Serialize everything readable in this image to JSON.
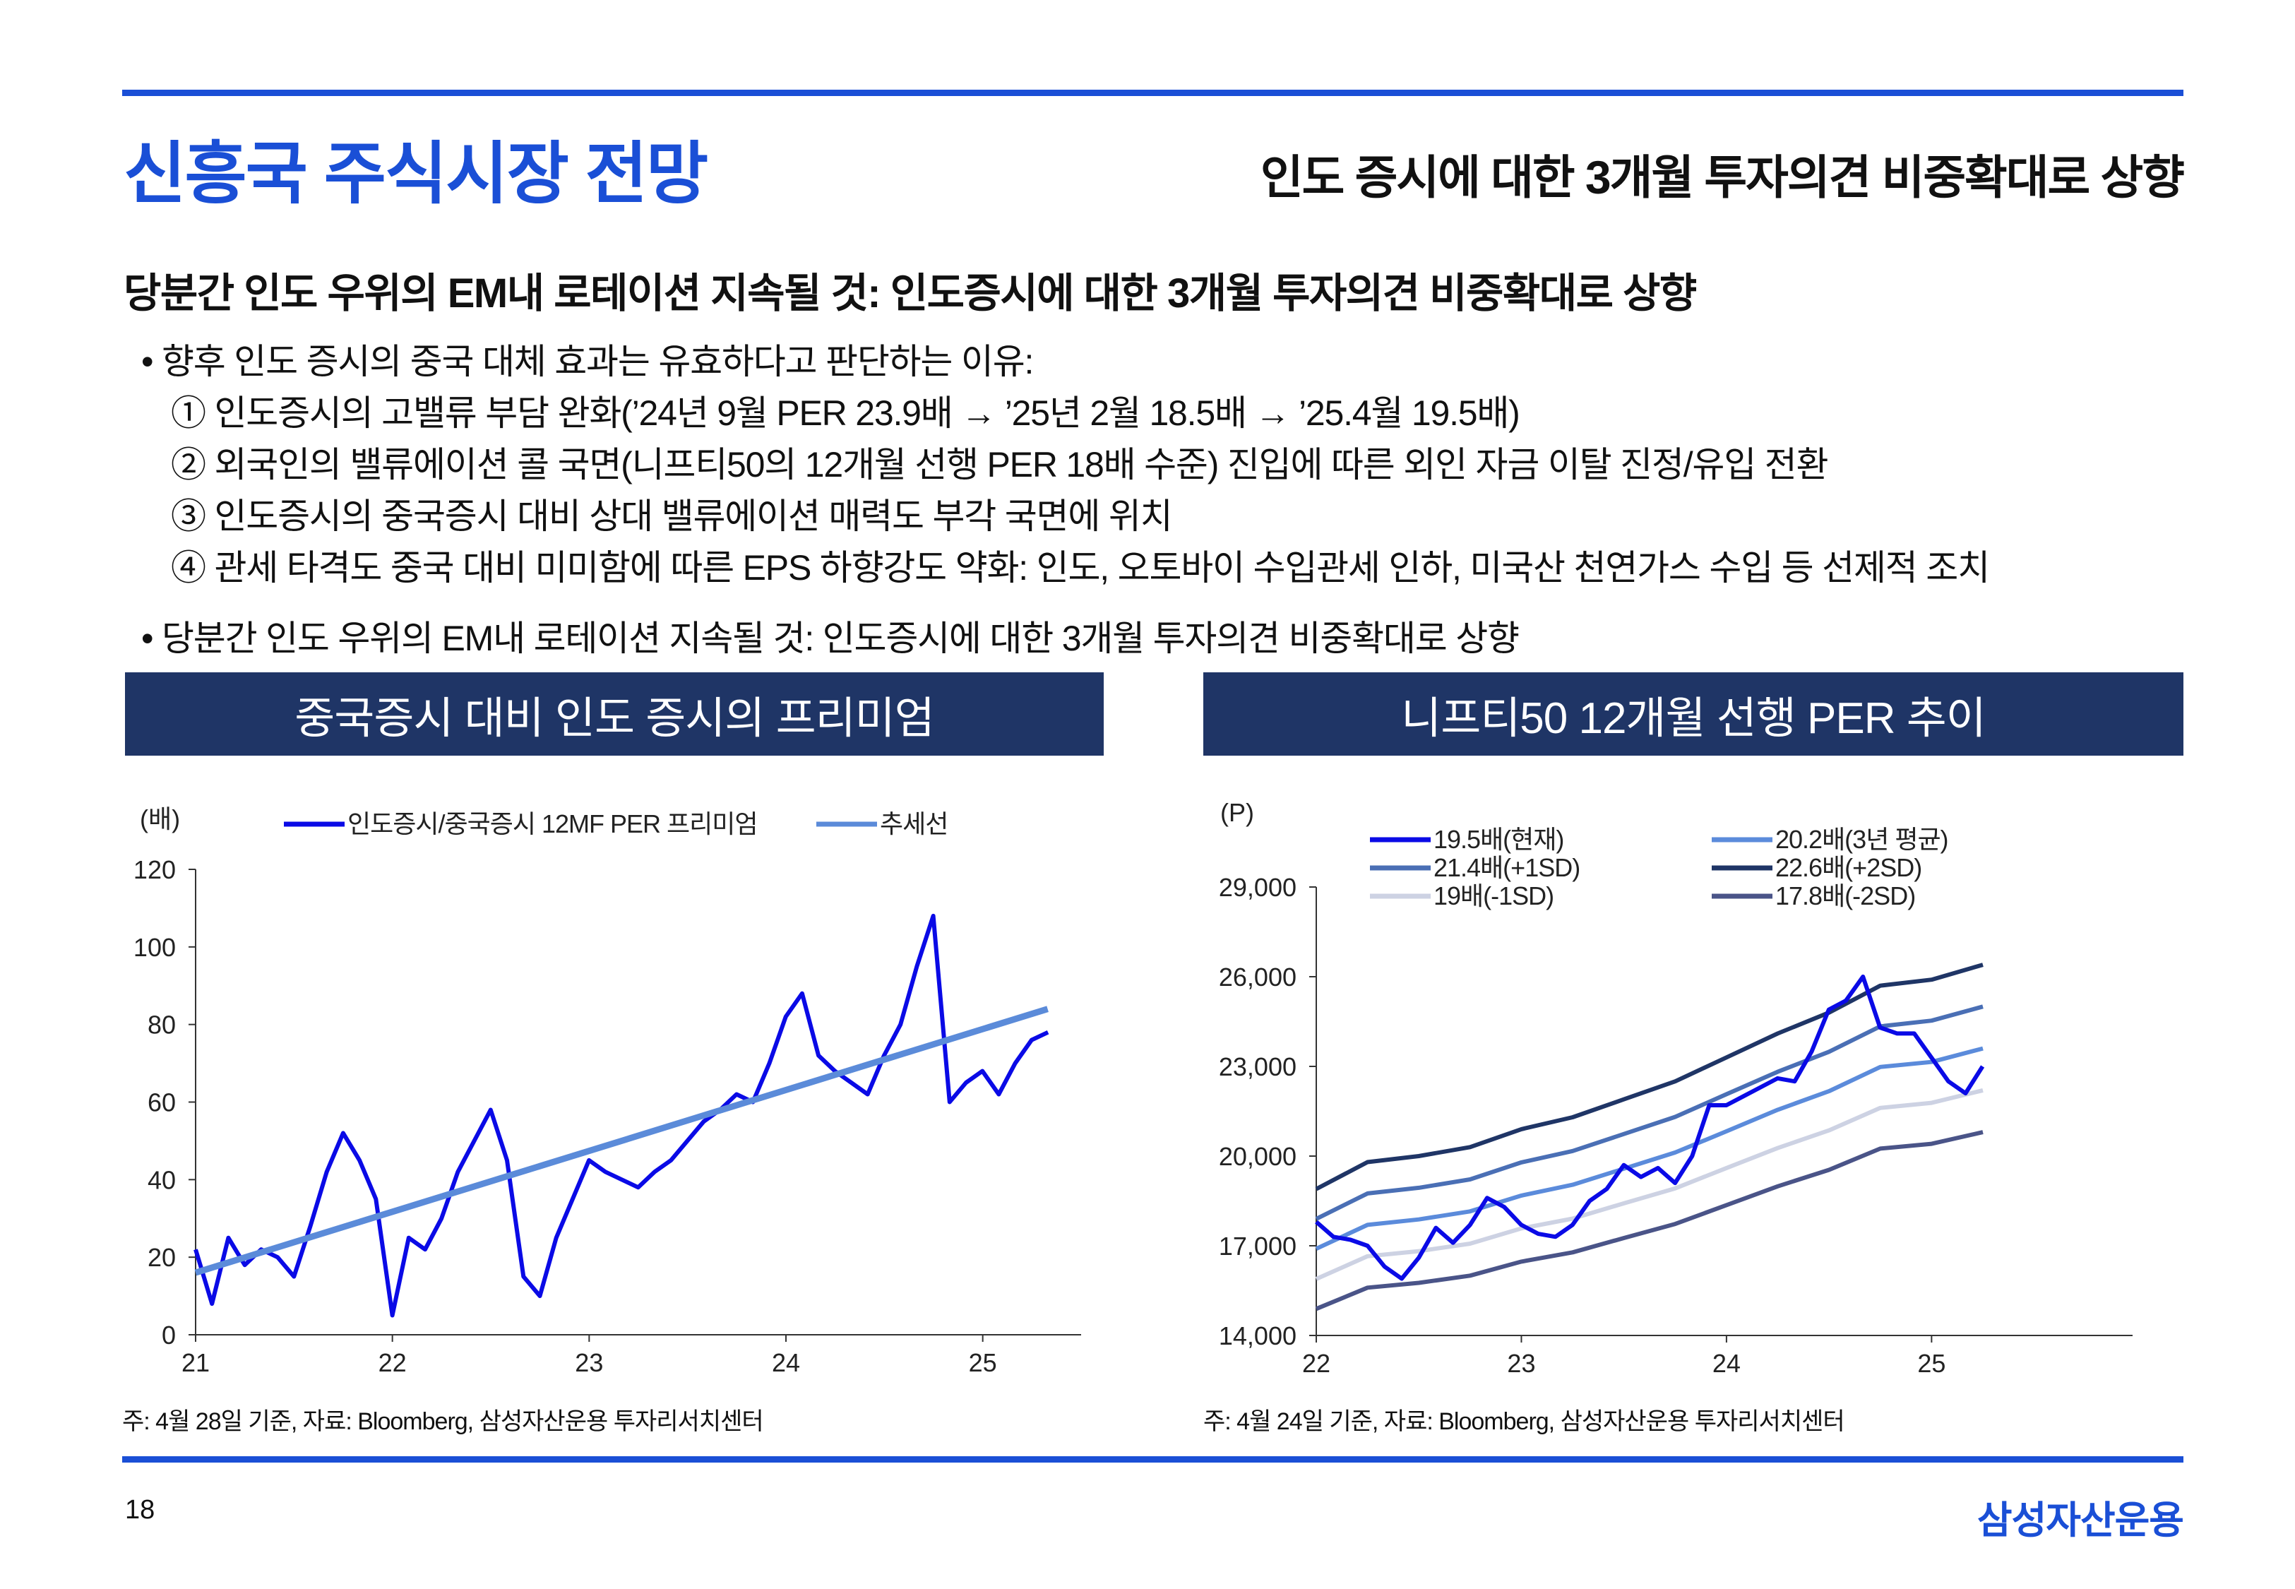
{
  "header": {
    "title": "신흥국 주식시장 전망",
    "subtitle": "인도 증시에 대한 3개월 투자의견 비중확대로 상향"
  },
  "heading": "당분간 인도 우위의 EM내 로테이션 지속될 것: 인도증시에 대한 3개월 투자의견 비중확대로 상향",
  "bullets": [
    "• 향후 인도 증시의 중국 대체 효과는 유효하다고 판단하는 이유:",
    "① 인도증시의 고밸류 부담 완화(’24년 9월 PER 23.9배 → ’25년 2월 18.5배 → ’25.4월 19.5배)",
    "② 외국인의 밸류에이션 콜 국면(니프티50의 12개월 선행 PER 18배 수준) 진입에 따른 외인 자금 이탈 진정/유입 전환",
    "③ 인도증시의 중국증시 대비 상대 밸류에이션 매력도 부각 국면에 위치",
    "④ 관세 타격도 중국 대비 미미함에 따른 EPS 하향강도 약화: 인도, 오토바이 수입관세 인하, 미국산 천연가스 수입 등 선제적 조치",
    "• 당분간 인도 우위의 EM내 로테이션 지속될 것: 인도증시에 대한 3개월 투자의견 비중확대로 상향"
  ],
  "notes": {
    "left": "주: 4월 28일 기준, 자료: Bloomberg, 삼성자산운용 투자리서치센터",
    "right": "주: 4월 24일 기준, 자료: Bloomberg, 삼성자산운용 투자리서치센터"
  },
  "footer": {
    "page": "18",
    "logo": "삼성자산운용"
  },
  "chart_data": [
    {
      "type": "line",
      "title": "중국증시 대비 인도 증시의 프리미엄",
      "ylabel": "(배)",
      "ylim": [
        0,
        120
      ],
      "yticks": [
        0,
        20,
        40,
        60,
        80,
        100,
        120
      ],
      "xlim": [
        2021,
        2025.5
      ],
      "xticks": [
        {
          "v": 2021,
          "label": "21"
        },
        {
          "v": 2022,
          "label": "22"
        },
        {
          "v": 2023,
          "label": "23"
        },
        {
          "v": 2024,
          "label": "24"
        },
        {
          "v": 2025,
          "label": "25"
        }
      ],
      "x_start": 2021,
      "x_step": 0.0833,
      "series": [
        {
          "name": "인도증시/중국증시 12MF PER 프리미엄",
          "color": "#0a0ae6",
          "values": [
            22,
            8,
            25,
            18,
            22,
            20,
            15,
            28,
            42,
            52,
            45,
            35,
            5,
            25,
            22,
            30,
            42,
            50,
            58,
            45,
            15,
            10,
            25,
            35,
            45,
            42,
            40,
            38,
            42,
            45,
            50,
            55,
            58,
            62,
            60,
            70,
            82,
            88,
            72,
            68,
            65,
            62,
            72,
            80,
            95,
            108,
            60,
            65,
            68,
            62,
            70,
            76,
            78
          ]
        },
        {
          "name": "추세선",
          "color": "#5b8bd9",
          "x": [
            2021,
            2025.33
          ],
          "values": [
            16,
            84
          ]
        }
      ]
    },
    {
      "type": "line",
      "title": "니프티50 12개월 선행 PER 추이",
      "ylabel": "(P)",
      "ylim": [
        14000,
        29000
      ],
      "yticks": [
        14000,
        17000,
        20000,
        23000,
        26000,
        29000
      ],
      "ytick_labels": [
        "14,000",
        "17,000",
        "20,000",
        "23,000",
        "26,000",
        "29,000"
      ],
      "xlim": [
        2022,
        2025.98
      ],
      "xticks": [
        {
          "v": 2022,
          "label": "22"
        },
        {
          "v": 2023,
          "label": "23"
        },
        {
          "v": 2024,
          "label": "24"
        },
        {
          "v": 2025,
          "label": "25"
        }
      ],
      "series": [
        {
          "name": "19.5배(현재)",
          "color": "#0a0ae6",
          "x_start": 2022,
          "x_step": 0.0833,
          "values": [
            17800,
            17300,
            17200,
            17000,
            16300,
            15900,
            16600,
            17600,
            17100,
            17700,
            18600,
            18300,
            17700,
            17400,
            17300,
            17700,
            18500,
            18900,
            19700,
            19300,
            19600,
            19100,
            20000,
            21700,
            21700,
            22000,
            22300,
            22600,
            22500,
            23500,
            24900,
            25200,
            26000,
            24300,
            24100,
            24100,
            23300,
            22500,
            22100,
            23000
          ]
        },
        {
          "name": "20.2배(3년 평균)",
          "color": "#5b8bdb",
          "x_start": 2022,
          "x_step": 0.25,
          "values": [
            16900,
            17700,
            17880,
            18150,
            18680,
            19040,
            19580,
            20120,
            20830,
            21550,
            22170,
            22980,
            23150,
            23600
          ]
        },
        {
          "name": "21.4배(+1SD)",
          "color": "#4a6fb5",
          "x_start": 2022,
          "x_step": 0.25,
          "values": [
            17900,
            18750,
            18940,
            19220,
            19790,
            20170,
            20740,
            21310,
            22070,
            22820,
            23490,
            24340,
            24530,
            25000
          ]
        },
        {
          "name": "22.6배(+2SD)",
          "color": "#1f3566",
          "x_start": 2022,
          "x_step": 0.25,
          "values": [
            18900,
            19800,
            20000,
            20300,
            20900,
            21300,
            21900,
            22500,
            23300,
            24100,
            24800,
            25700,
            25900,
            26400
          ]
        },
        {
          "name": "19배(-1SD)",
          "color": "#cdd2e3",
          "x_start": 2022,
          "x_step": 0.25,
          "values": [
            15890,
            16650,
            16820,
            17070,
            17580,
            17910,
            18420,
            18920,
            19600,
            20270,
            20860,
            21610,
            21780,
            22200
          ]
        },
        {
          "name": "17.8배(-2SD)",
          "color": "#4a5488",
          "x_start": 2022,
          "x_step": 0.25,
          "values": [
            14890,
            15600,
            15760,
            16000,
            16470,
            16780,
            17260,
            17730,
            18360,
            18990,
            19540,
            20250,
            20410,
            20800
          ]
        }
      ]
    }
  ]
}
